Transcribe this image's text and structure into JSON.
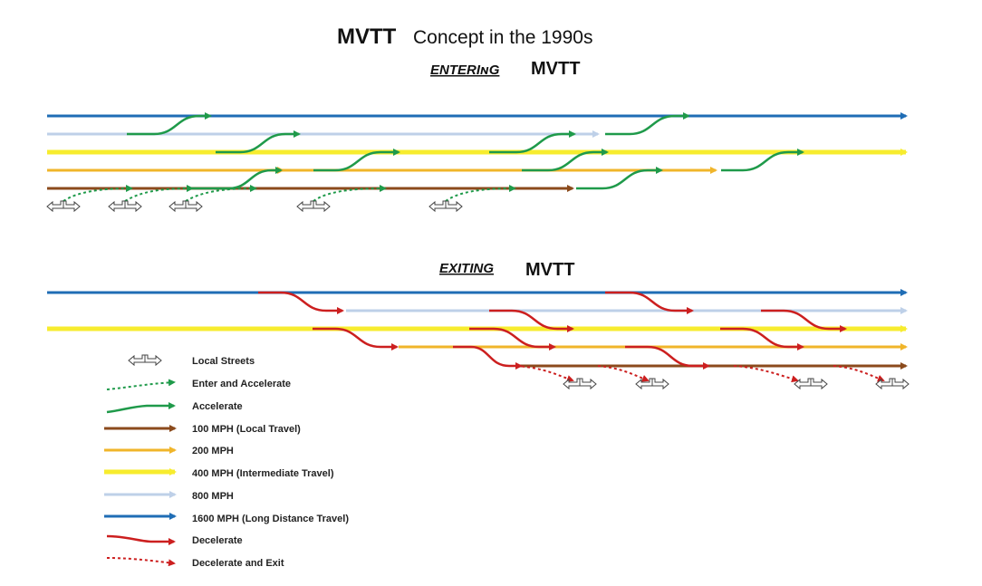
{
  "title": {
    "main": "MVTT",
    "sub": "Concept in the 1990s"
  },
  "sections": {
    "entering": {
      "emphasis": "ENTERIɴG",
      "label": "MVTT"
    },
    "exiting": {
      "emphasis": "EXITING",
      "label": "MVTT"
    }
  },
  "colors": {
    "brown": "#8B4A1C",
    "orange": "#F0B52A",
    "yellow": "#F7EC2E",
    "lightblue": "#BED0E8",
    "blue": "#1F6DB5",
    "green": "#1F9A4A",
    "red": "#CC1F1F"
  },
  "legend": [
    {
      "key": "local-streets",
      "label": "Local Streets"
    },
    {
      "key": "enter-accelerate",
      "label": "Enter and Accelerate"
    },
    {
      "key": "accelerate",
      "label": "Accelerate"
    },
    {
      "key": "lane-100",
      "label": "100 MPH (Local Travel)"
    },
    {
      "key": "lane-200",
      "label": "200 MPH"
    },
    {
      "key": "lane-400",
      "label": "400 MPH (Intermediate Travel)"
    },
    {
      "key": "lane-800",
      "label": "800 MPH"
    },
    {
      "key": "lane-1600",
      "label": "1600 MPH (Long Distance Travel)"
    },
    {
      "key": "decelerate",
      "label": "Decelerate"
    },
    {
      "key": "decelerate-exit",
      "label": "Decelerate and Exit"
    }
  ]
}
